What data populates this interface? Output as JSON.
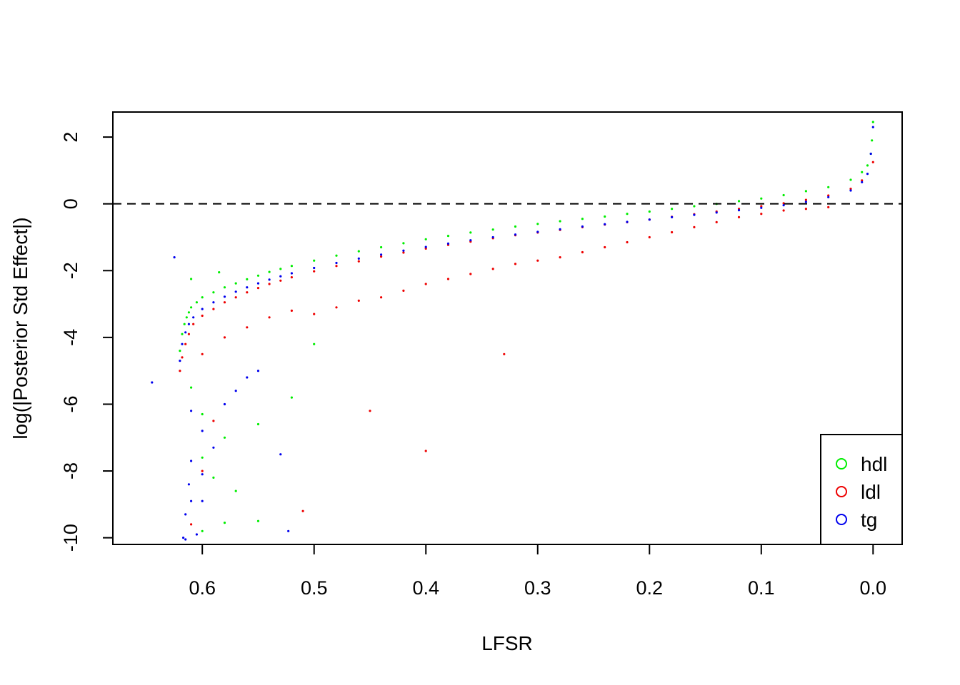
{
  "chart_data": {
    "type": "scatter",
    "title": "",
    "xlabel": "LFSR",
    "ylabel": "log(|Posterior Std Effect|)",
    "xlim": [
      0.68,
      -0.026
    ],
    "ylim": [
      -10.2,
      2.75
    ],
    "x_reversed": true,
    "x_ticks": [
      0.6,
      0.5,
      0.4,
      0.3,
      0.2,
      0.1,
      0.0
    ],
    "x_tick_labels": [
      "0.6",
      "0.5",
      "0.4",
      "0.3",
      "0.2",
      "0.1",
      "0.0"
    ],
    "y_ticks": [
      2,
      0,
      -2,
      -4,
      -6,
      -8,
      -10
    ],
    "y_tick_labels": [
      "2",
      "0",
      "-2",
      "-4",
      "-6",
      "-8",
      "-10"
    ],
    "reference_line": {
      "y": 0,
      "style": "dashed"
    },
    "grid": false,
    "legend": {
      "position": "bottom-right",
      "marker": "open-circle",
      "entries": [
        {
          "label": "hdl",
          "color": "#00ee00"
        },
        {
          "label": "ldl",
          "color": "#ee0000"
        },
        {
          "label": "tg",
          "color": "#0000ee"
        }
      ]
    },
    "series": [
      {
        "name": "hdl",
        "color": "#00ee00",
        "x": [
          0.62,
          0.618,
          0.616,
          0.614,
          0.612,
          0.61,
          0.605,
          0.6,
          0.59,
          0.58,
          0.57,
          0.56,
          0.55,
          0.54,
          0.53,
          0.52,
          0.5,
          0.48,
          0.46,
          0.44,
          0.42,
          0.4,
          0.38,
          0.36,
          0.34,
          0.32,
          0.3,
          0.28,
          0.26,
          0.24,
          0.22,
          0.2,
          0.18,
          0.16,
          0.14,
          0.12,
          0.1,
          0.08,
          0.06,
          0.04,
          0.02,
          0.01,
          0.005,
          0.002,
          0.001,
          0.0,
          0.61,
          0.6,
          0.58,
          0.55,
          0.52,
          0.5,
          0.6,
          0.58,
          0.55,
          0.57,
          0.59,
          0.6,
          0.585,
          0.61
        ],
        "y": [
          -4.4,
          -3.9,
          -3.6,
          -3.4,
          -3.25,
          -3.1,
          -2.95,
          -2.8,
          -2.65,
          -2.5,
          -2.38,
          -2.26,
          -2.15,
          -2.04,
          -1.95,
          -1.86,
          -1.7,
          -1.55,
          -1.42,
          -1.3,
          -1.18,
          -1.06,
          -0.96,
          -0.86,
          -0.77,
          -0.68,
          -0.6,
          -0.52,
          -0.45,
          -0.38,
          -0.3,
          -0.23,
          -0.15,
          -0.07,
          0.0,
          0.08,
          0.16,
          0.26,
          0.38,
          0.5,
          0.72,
          0.95,
          1.15,
          1.5,
          1.9,
          2.45,
          -5.5,
          -6.3,
          -7.0,
          -6.6,
          -5.8,
          -4.2,
          -9.8,
          -9.55,
          -9.5,
          -8.6,
          -8.2,
          -7.6,
          -2.05,
          -2.25
        ]
      },
      {
        "name": "ldl",
        "color": "#ee0000",
        "x": [
          0.62,
          0.618,
          0.615,
          0.612,
          0.608,
          0.6,
          0.59,
          0.58,
          0.57,
          0.56,
          0.55,
          0.54,
          0.53,
          0.52,
          0.5,
          0.48,
          0.46,
          0.44,
          0.42,
          0.4,
          0.38,
          0.36,
          0.34,
          0.32,
          0.3,
          0.28,
          0.26,
          0.24,
          0.22,
          0.2,
          0.18,
          0.16,
          0.14,
          0.12,
          0.1,
          0.08,
          0.06,
          0.04,
          0.02,
          0.01,
          0.0,
          0.6,
          0.58,
          0.56,
          0.54,
          0.52,
          0.5,
          0.48,
          0.46,
          0.44,
          0.42,
          0.4,
          0.38,
          0.36,
          0.34,
          0.32,
          0.3,
          0.28,
          0.26,
          0.24,
          0.22,
          0.2,
          0.18,
          0.16,
          0.14,
          0.12,
          0.1,
          0.08,
          0.06,
          0.04,
          0.4,
          0.33,
          0.45,
          0.51,
          0.61,
          0.6,
          0.59
        ],
        "y": [
          -5.0,
          -4.6,
          -4.2,
          -3.9,
          -3.6,
          -3.35,
          -3.15,
          -2.95,
          -2.8,
          -2.65,
          -2.52,
          -2.4,
          -2.3,
          -2.2,
          -2.02,
          -1.86,
          -1.72,
          -1.58,
          -1.46,
          -1.34,
          -1.23,
          -1.13,
          -1.03,
          -0.94,
          -0.86,
          -0.78,
          -0.7,
          -0.62,
          -0.55,
          -0.47,
          -0.39,
          -0.31,
          -0.23,
          -0.15,
          -0.07,
          0.02,
          0.12,
          0.25,
          0.45,
          0.7,
          1.25,
          -4.5,
          -4.0,
          -3.7,
          -3.4,
          -3.2,
          -3.3,
          -3.1,
          -2.9,
          -2.8,
          -2.6,
          -2.4,
          -2.25,
          -2.1,
          -1.95,
          -1.8,
          -1.7,
          -1.6,
          -1.45,
          -1.3,
          -1.15,
          -1.0,
          -0.85,
          -0.7,
          -0.55,
          -0.4,
          -0.3,
          -0.2,
          -0.15,
          -0.1,
          -7.4,
          -4.5,
          -6.2,
          -9.2,
          -9.6,
          -8.0,
          -6.5
        ]
      },
      {
        "name": "tg",
        "color": "#0000ee",
        "x": [
          0.62,
          0.618,
          0.615,
          0.612,
          0.608,
          0.6,
          0.59,
          0.58,
          0.57,
          0.56,
          0.55,
          0.54,
          0.53,
          0.52,
          0.5,
          0.48,
          0.46,
          0.44,
          0.42,
          0.4,
          0.38,
          0.36,
          0.34,
          0.32,
          0.3,
          0.28,
          0.26,
          0.24,
          0.22,
          0.2,
          0.18,
          0.16,
          0.14,
          0.12,
          0.1,
          0.08,
          0.06,
          0.04,
          0.02,
          0.01,
          0.005,
          0.002,
          0.0,
          0.645,
          0.625,
          0.53,
          0.61,
          0.6,
          0.59,
          0.58,
          0.57,
          0.56,
          0.55,
          0.6,
          0.615,
          0.612,
          0.61,
          0.605,
          0.6,
          0.523,
          0.615,
          0.617,
          0.61
        ],
        "y": [
          -4.7,
          -4.2,
          -3.85,
          -3.6,
          -3.4,
          -3.15,
          -2.95,
          -2.78,
          -2.63,
          -2.5,
          -2.38,
          -2.27,
          -2.17,
          -2.08,
          -1.92,
          -1.77,
          -1.64,
          -1.52,
          -1.4,
          -1.29,
          -1.19,
          -1.09,
          -1.0,
          -0.92,
          -0.84,
          -0.76,
          -0.68,
          -0.61,
          -0.54,
          -0.47,
          -0.4,
          -0.33,
          -0.26,
          -0.19,
          -0.12,
          -0.04,
          0.06,
          0.2,
          0.4,
          0.65,
          0.9,
          1.5,
          2.3,
          -5.35,
          -1.6,
          -7.5,
          -6.2,
          -6.8,
          -7.3,
          -6.0,
          -5.6,
          -5.2,
          -5.0,
          -8.9,
          -9.3,
          -8.4,
          -7.7,
          -9.9,
          -8.1,
          -9.8,
          -10.05,
          -10.0,
          -8.9
        ]
      }
    ]
  }
}
